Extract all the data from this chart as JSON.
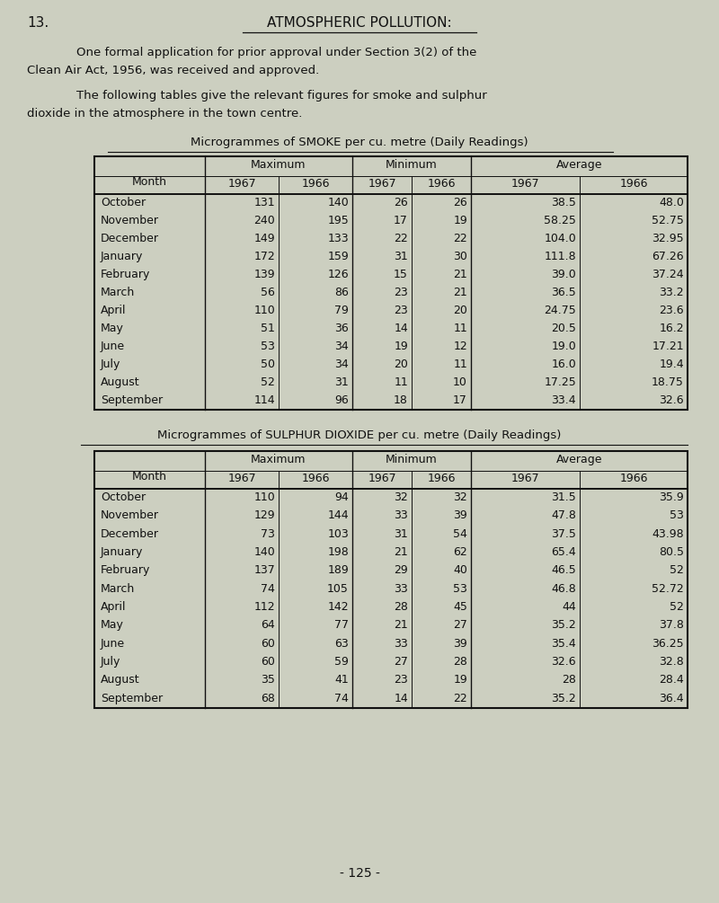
{
  "bg_color": "#cccfc0",
  "title_number": "13.",
  "title_text": "ATMOSPHERIC POLLUTION:",
  "para1_indent": "        One formal application for prior approval under Section 3(2) of the",
  "para1_cont": "Clean Air Act, 1956, was received and approved.",
  "para2_indent": "        The following tables give the relevant figures for smoke and sulphur",
  "para2_cont": "dioxide in the atmosphere in the town centre.",
  "smoke_table_title": "Microgrammes of SMOKE per cu. metre (Daily Readings)",
  "so2_table_title": "Microgrammes of SULPHUR DIOXIDE per cu. metre (Daily Readings)",
  "months": [
    "October",
    "November",
    "December",
    "January",
    "February",
    "March",
    "April",
    "May",
    "June",
    "July",
    "August",
    "September"
  ],
  "smoke": {
    "max_1967": [
      "131",
      "240",
      "149",
      "172",
      "139",
      "56",
      "110",
      "51",
      "53",
      "50",
      "52",
      "114"
    ],
    "max_1966": [
      "140",
      "195",
      "133",
      "159",
      "126",
      "86",
      "79",
      "36",
      "34",
      "34",
      "31",
      "96"
    ],
    "min_1967": [
      "26",
      "17",
      "22",
      "31",
      "15",
      "23",
      "23",
      "14",
      "19",
      "20",
      "11",
      "18"
    ],
    "min_1966": [
      "26",
      "19",
      "22",
      "30",
      "21",
      "21",
      "20",
      "11",
      "12",
      "11",
      "10",
      "17"
    ],
    "avg_1967": [
      "38.5",
      "58.25",
      "104.0",
      "111.8",
      "39.0",
      "36.5",
      "24.75",
      "20.5",
      "19.0",
      "16.0",
      "17.25",
      "33.4"
    ],
    "avg_1966": [
      "48.0",
      "52.75",
      "32.95",
      "67.26",
      "37.24",
      "33.2",
      "23.6",
      "16.2",
      "17.21",
      "19.4",
      "18.75",
      "32.6"
    ]
  },
  "so2": {
    "max_1967": [
      "110",
      "129",
      "73",
      "140",
      "137",
      "74",
      "112",
      "64",
      "60",
      "60",
      "35",
      "68"
    ],
    "max_1966": [
      "94",
      "144",
      "103",
      "198",
      "189",
      "105",
      "142",
      "77",
      "63",
      "59",
      "41",
      "74"
    ],
    "min_1967": [
      "32",
      "33",
      "31",
      "21",
      "29",
      "33",
      "28",
      "21",
      "33",
      "27",
      "23",
      "14"
    ],
    "min_1966": [
      "32",
      "39",
      "54",
      "62",
      "40",
      "53",
      "45",
      "27",
      "39",
      "28",
      "19",
      "22"
    ],
    "avg_1967": [
      "31.5",
      "47.8",
      "37.5",
      "65.4",
      "46.5",
      "46.8",
      "44",
      "35.2",
      "35.4",
      "32.6",
      "28",
      "35.2"
    ],
    "avg_1966": [
      "35.9",
      "53",
      "43.98",
      "80.5",
      "52",
      "52.72",
      "52",
      "37.8",
      "36.25",
      "32.8",
      "28.4",
      "36.4"
    ]
  },
  "page_number": "- 125 -",
  "font_size_body": 9.5,
  "font_size_table": 9.0,
  "font_size_title": 11.0
}
